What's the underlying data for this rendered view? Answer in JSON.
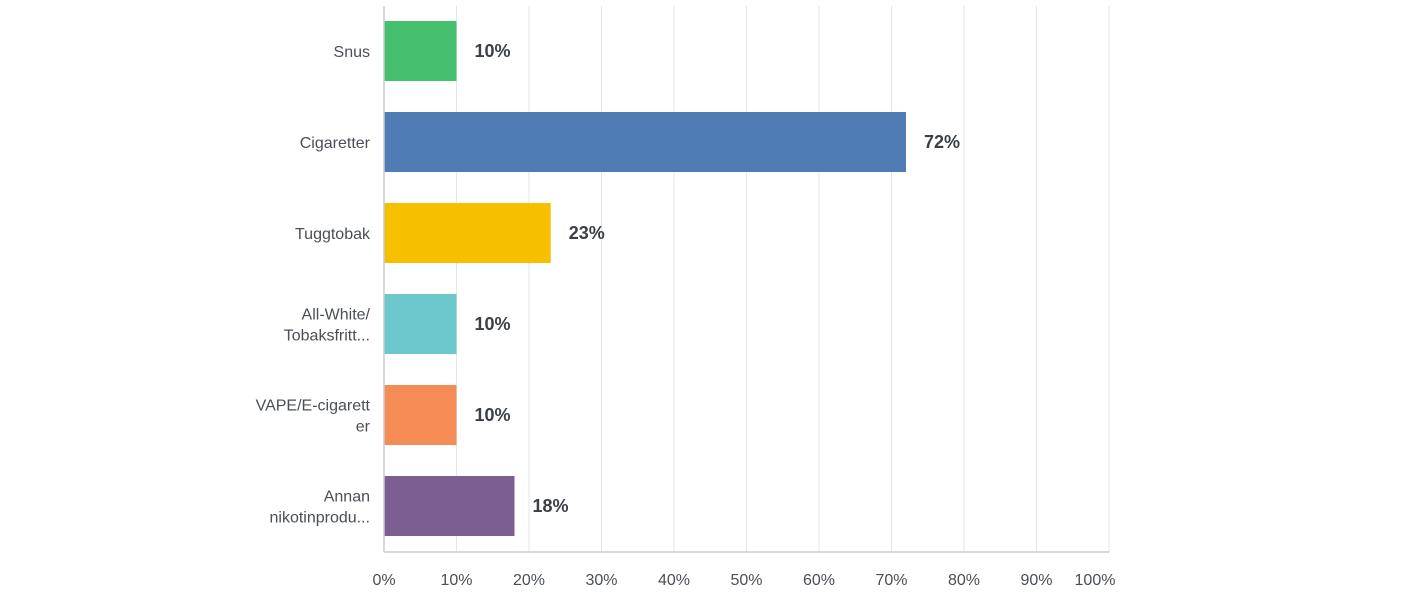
{
  "chart_data": {
    "type": "bar",
    "orientation": "horizontal",
    "categories": [
      [
        "Snus"
      ],
      [
        "Cigaretter"
      ],
      [
        "Tuggtobak"
      ],
      [
        "All-White/",
        "Tobaksfritt..."
      ],
      [
        "VAPE/E-cigarett",
        "er"
      ],
      [
        "Annan",
        "nikotinprodu..."
      ]
    ],
    "values": [
      10,
      72,
      23,
      10,
      10,
      18
    ],
    "value_labels": [
      "10%",
      "72%",
      "23%",
      "10%",
      "10%",
      "18%"
    ],
    "colors": [
      "#46c06e",
      "#507cb6",
      "#f6c000",
      "#6cc8cc",
      "#f58c55",
      "#7d5e92"
    ],
    "xlim": [
      0,
      100
    ],
    "xticks": [
      0,
      10,
      20,
      30,
      40,
      50,
      60,
      70,
      80,
      90,
      100
    ],
    "xtick_labels": [
      "0%",
      "10%",
      "20%",
      "30%",
      "40%",
      "50%",
      "60%",
      "70%",
      "80%",
      "90%",
      "100%"
    ],
    "grid": true,
    "title": "",
    "xlabel": "",
    "ylabel": ""
  }
}
